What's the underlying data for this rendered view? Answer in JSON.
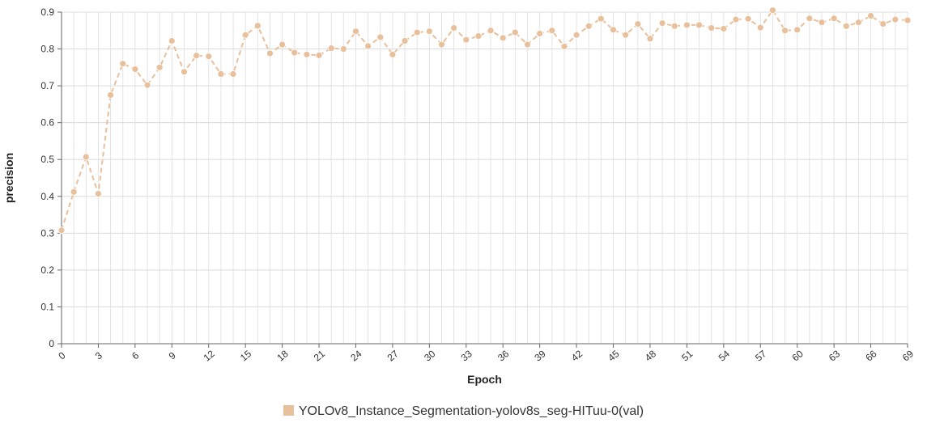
{
  "chart_data": {
    "type": "line",
    "xlabel": "Epoch",
    "ylabel": "precision",
    "ylim": [
      0,
      0.9
    ],
    "yticks": [
      "0",
      "0.1",
      "0.2",
      "0.3",
      "0.4",
      "0.5",
      "0.6",
      "0.7",
      "0.8",
      "0.9"
    ],
    "xlim": [
      0,
      69
    ],
    "xticks": [
      "0",
      "3",
      "6",
      "9",
      "12",
      "15",
      "18",
      "21",
      "24",
      "27",
      "30",
      "33",
      "36",
      "39",
      "42",
      "45",
      "48",
      "51",
      "54",
      "57",
      "60",
      "63",
      "66",
      "69"
    ],
    "grid": true,
    "legend_position": "bottom",
    "series": [
      {
        "name": "YOLOv8_Instance_Segmentation-yolov8s_seg-HITuu-0(val)",
        "color": "#e8c09c",
        "line_style": "dashed",
        "x": [
          0,
          1,
          2,
          3,
          4,
          5,
          6,
          7,
          8,
          9,
          10,
          11,
          12,
          13,
          14,
          15,
          16,
          17,
          18,
          19,
          20,
          21,
          22,
          23,
          24,
          25,
          26,
          27,
          28,
          29,
          30,
          31,
          32,
          33,
          34,
          35,
          36,
          37,
          38,
          39,
          40,
          41,
          42,
          43,
          44,
          45,
          46,
          47,
          48,
          49,
          50,
          51,
          52,
          53,
          54,
          55,
          56,
          57,
          58,
          59,
          60,
          61,
          62,
          63,
          64,
          65,
          66,
          67,
          68,
          69
        ],
        "values": [
          0.308,
          0.412,
          0.507,
          0.407,
          0.675,
          0.76,
          0.745,
          0.702,
          0.75,
          0.822,
          0.738,
          0.782,
          0.78,
          0.732,
          0.732,
          0.838,
          0.863,
          0.788,
          0.812,
          0.79,
          0.785,
          0.783,
          0.802,
          0.8,
          0.848,
          0.808,
          0.832,
          0.785,
          0.822,
          0.845,
          0.848,
          0.812,
          0.857,
          0.825,
          0.835,
          0.85,
          0.83,
          0.845,
          0.812,
          0.842,
          0.85,
          0.807,
          0.838,
          0.862,
          0.882,
          0.852,
          0.838,
          0.868,
          0.828,
          0.87,
          0.862,
          0.865,
          0.865,
          0.857,
          0.855,
          0.88,
          0.882,
          0.858,
          0.905,
          0.85,
          0.852,
          0.883,
          0.872,
          0.883,
          0.862,
          0.872,
          0.89,
          0.868,
          0.88,
          0.878
        ]
      }
    ]
  }
}
